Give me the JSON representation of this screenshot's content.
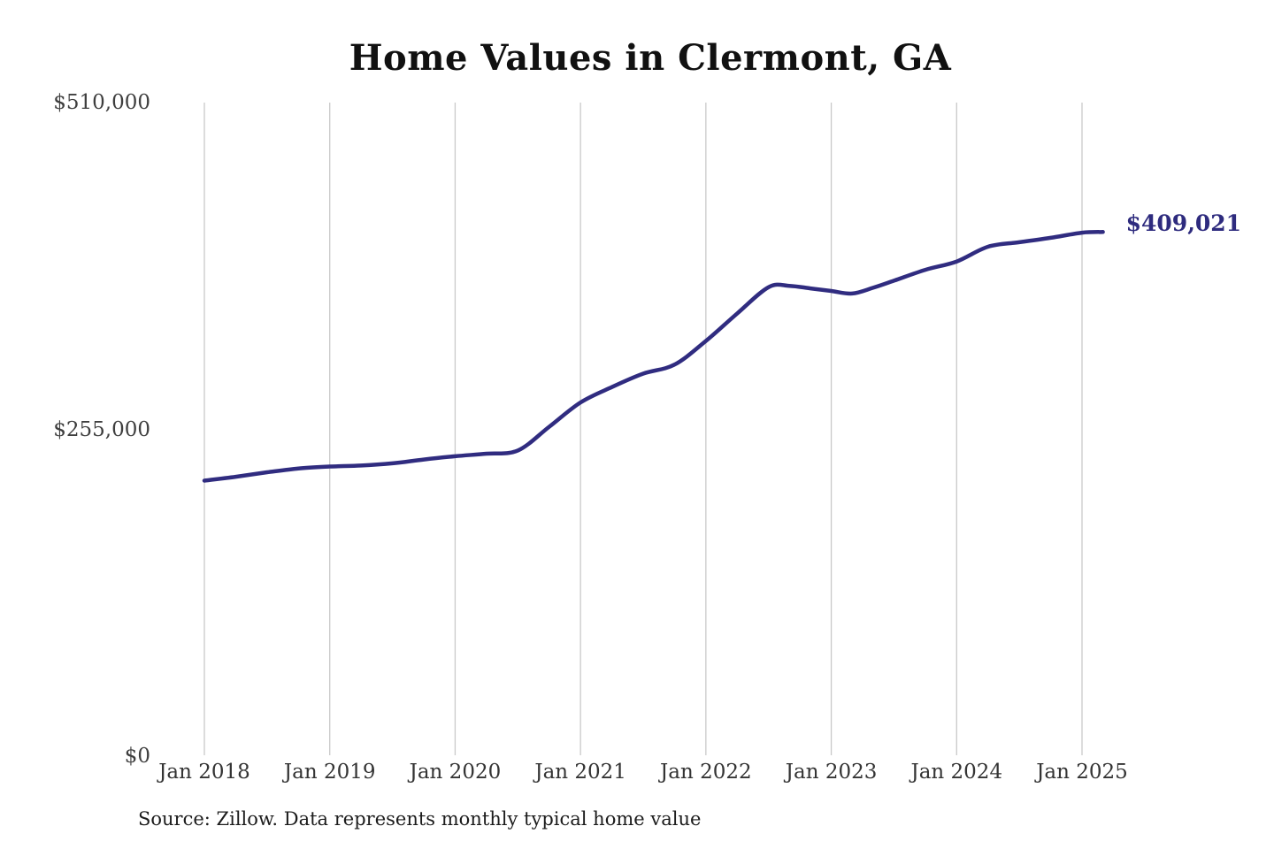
{
  "title": "Home Values in Clermont, GA",
  "source_note": "Source: Zillow. Data represents monthly typical home value",
  "chart_data": {
    "type": "line",
    "title": "Home Values in Clermont, GA",
    "xlabel": "",
    "ylabel": "",
    "x_axis": {
      "ticks": [
        "Jan 2018",
        "Jan 2019",
        "Jan 2020",
        "Jan 2021",
        "Jan 2022",
        "Jan 2023",
        "Jan 2024",
        "Jan 2025"
      ]
    },
    "y_axis": {
      "ticks": [
        {
          "label": "$510,000",
          "value": 510000
        },
        {
          "label": "$255,000",
          "value": 255000
        },
        {
          "label": "$0",
          "value": 0
        }
      ],
      "range": [
        0,
        510000
      ]
    },
    "grid": {
      "vertical": true,
      "horizontal": false,
      "color": "#c9c9c9"
    },
    "legend": "none",
    "colors": {
      "line": "#302c80",
      "end_label": "#2e2b7e"
    },
    "series": [
      {
        "name": "Monthly typical home value",
        "points": [
          {
            "date": "Jan 2018",
            "value": 215000
          },
          {
            "date": "Apr 2018",
            "value": 218000
          },
          {
            "date": "Jul 2018",
            "value": 221500
          },
          {
            "date": "Oct 2018",
            "value": 224500
          },
          {
            "date": "Jan 2019",
            "value": 226000
          },
          {
            "date": "Apr 2019",
            "value": 226800
          },
          {
            "date": "Jul 2019",
            "value": 228500
          },
          {
            "date": "Oct 2019",
            "value": 231500
          },
          {
            "date": "Jan 2020",
            "value": 234000
          },
          {
            "date": "Apr 2020",
            "value": 236000
          },
          {
            "date": "Jul 2020",
            "value": 238500
          },
          {
            "date": "Oct 2020",
            "value": 257000
          },
          {
            "date": "Jan 2021",
            "value": 276000
          },
          {
            "date": "Apr 2021",
            "value": 288000
          },
          {
            "date": "Jul 2021",
            "value": 298500
          },
          {
            "date": "Oct 2021",
            "value": 305500
          },
          {
            "date": "Jan 2022",
            "value": 324000
          },
          {
            "date": "Apr 2022",
            "value": 345500
          },
          {
            "date": "Jul 2022",
            "value": 366000
          },
          {
            "date": "Sep 2022",
            "value": 367000
          },
          {
            "date": "Nov 2022",
            "value": 365000
          },
          {
            "date": "Jan 2023",
            "value": 363000
          },
          {
            "date": "Mar 2023",
            "value": 361000
          },
          {
            "date": "May 2023",
            "value": 365500
          },
          {
            "date": "Jul 2023",
            "value": 371000
          },
          {
            "date": "Oct 2023",
            "value": 379500
          },
          {
            "date": "Jan 2024",
            "value": 386000
          },
          {
            "date": "Apr 2024",
            "value": 397500
          },
          {
            "date": "Jul 2024",
            "value": 401000
          },
          {
            "date": "Oct 2024",
            "value": 404500
          },
          {
            "date": "Jan 2025",
            "value": 408500
          },
          {
            "date": "Mar 2025",
            "value": 409021
          }
        ]
      }
    ],
    "end_label": {
      "text": "$409,021",
      "value": 409021,
      "date": "Mar 2025"
    },
    "source": "Source: Zillow. Data represents monthly typical home value"
  }
}
